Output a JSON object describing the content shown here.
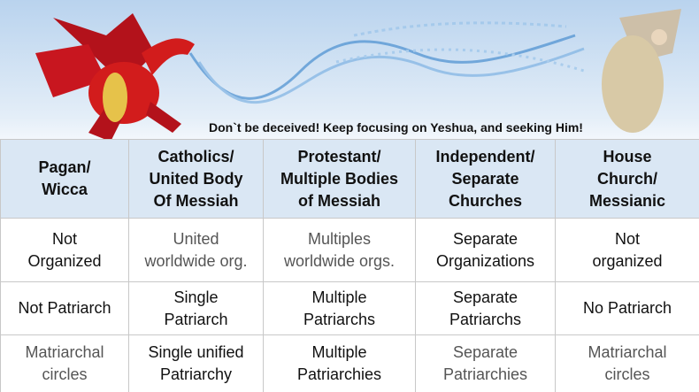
{
  "caption": "Don`t be deceived! Keep focusing on Yeshua, and seeking Him!",
  "table": {
    "header": [
      "Pagan/\nWicca",
      "Catholics/\nUnited Body\nOf Messiah",
      "Protestant/\nMultiple Bodies\nof Messiah",
      "Independent/\nSeparate\nChurches",
      "House\nChurch/\nMessianic"
    ],
    "rows": [
      [
        "Not\nOrganized",
        "United\nworldwide org.",
        "Multiples\nworldwide orgs.",
        "Separate\nOrganizations",
        "Not\norganized"
      ],
      [
        "Not Patriarch",
        "Single\nPatriarch",
        "Multiple\nPatriarchs",
        "Separate\nPatriarchs",
        "No Patriarch"
      ],
      [
        "Matriarchal\ncircles",
        "Single unified\nPatriarchy",
        "Multiple\nPatriarchies",
        "Separate\nPatriarchies",
        "Matriarchal\ncircles"
      ]
    ]
  }
}
